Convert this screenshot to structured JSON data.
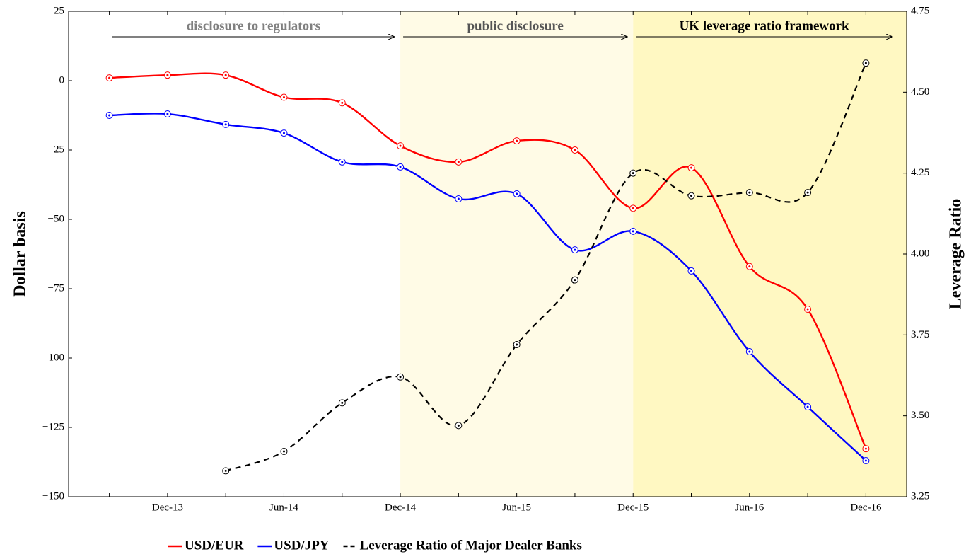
{
  "chart_data": {
    "type": "line",
    "y_label": "Dollar basis",
    "y2_label": "Leverage Ratio",
    "categories": [
      null,
      "Dec-13",
      null,
      "Jun-14",
      null,
      "Dec-14",
      null,
      "Jun-15",
      null,
      "Dec-15",
      null,
      "Jun-16",
      null,
      "Dec-16"
    ],
    "series": [
      {
        "name": "USD/EUR",
        "color": "#ff0000",
        "values": [
          1,
          2,
          2,
          -6,
          -8,
          -23.5,
          -29.3,
          -21.7,
          -25,
          -46,
          -31.4,
          -67,
          -82.4,
          -132.7
        ]
      },
      {
        "name": "USD/JPY",
        "color": "#0000ff",
        "values": [
          -12.5,
          -12,
          -15.8,
          -18.9,
          -29.3,
          -31.1,
          -42.6,
          -40.8,
          -61,
          -54.3,
          -68.6,
          -97.7,
          -117.6,
          -137
        ]
      },
      {
        "name": "Leverage Ratio of Major Dealer Banks",
        "color": "#000000",
        "dashed": true,
        "axis": "y2",
        "values": [
          null,
          null,
          3.33,
          3.39,
          3.54,
          3.62,
          3.47,
          3.72,
          3.92,
          4.25,
          4.18,
          4.19,
          4.19,
          4.59
        ]
      }
    ],
    "ylim": [
      -150,
      25
    ],
    "yticks": [
      {
        "value": -150,
        "label": "−150"
      },
      {
        "value": -125,
        "label": "−125"
      },
      {
        "value": -100,
        "label": "−100"
      },
      {
        "value": -75,
        "label": "−75"
      },
      {
        "value": -50,
        "label": "−50"
      },
      {
        "value": -25,
        "label": "−25"
      },
      0,
      25
    ],
    "y2lim": [
      3.25,
      4.75
    ],
    "y2ticks": [
      {
        "value": 3.25,
        "label": "3.25"
      },
      {
        "value": 3.5,
        "label": "3.50"
      },
      {
        "value": 3.75,
        "label": "3.75"
      },
      {
        "value": 4,
        "label": "4.00"
      },
      {
        "value": 4.25,
        "label": "4.25"
      },
      {
        "value": 4.5,
        "label": "4.50"
      },
      {
        "value": 4.75,
        "label": "4.75"
      }
    ],
    "regions": [
      {
        "label": "disclosure to regulators",
        "end": "Dec-14",
        "text_color": "#808080"
      },
      {
        "label": "public disclosure",
        "start": "Dec-14",
        "end": "Dec-15",
        "color": "#fffbe6",
        "text_color": "#555555"
      },
      {
        "label": "UK leverage ratio framework",
        "start": "Dec-15",
        "color": "#fff8c2",
        "text_color": "#000000"
      }
    ],
    "legend": "bottom"
  }
}
